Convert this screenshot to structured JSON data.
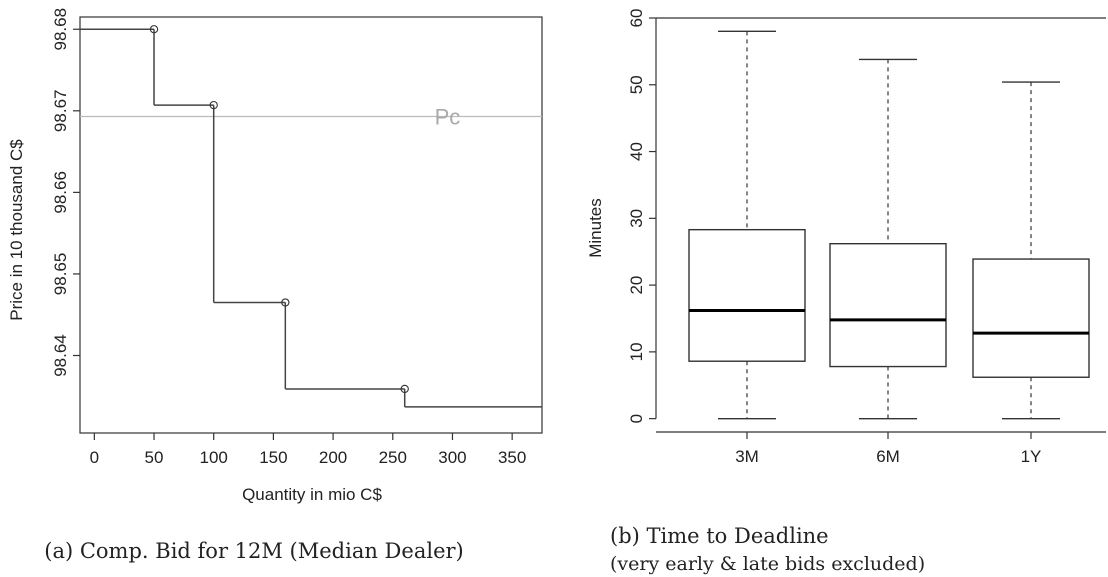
{
  "chart_data": [
    {
      "type": "line",
      "step": true,
      "caption": "(a) Comp. Bid for 12M (Median Dealer)",
      "xlabel": "Quantity in mio C$",
      "ylabel": "Price in 10 thousand C$",
      "xlim": [
        -12,
        375
      ],
      "ylim": [
        98.6305,
        98.6815
      ],
      "xticks": [
        "0",
        "50",
        "100",
        "150",
        "200",
        "250",
        "300",
        "350"
      ],
      "xtick_values": [
        0,
        50,
        100,
        150,
        200,
        250,
        300,
        350
      ],
      "yticks": [
        "98.64",
        "98.65",
        "98.66",
        "98.67",
        "98.68"
      ],
      "ytick_values": [
        98.64,
        98.65,
        98.66,
        98.67,
        98.68
      ],
      "steps": [
        {
          "x_start": -12,
          "x_end": 50,
          "y": 98.68
        },
        {
          "x_start": 50,
          "x_end": 100,
          "y": 98.6707
        },
        {
          "x_start": 100,
          "x_end": 160,
          "y": 98.6465
        },
        {
          "x_start": 160,
          "x_end": 260,
          "y": 98.6359
        },
        {
          "x_start": 260,
          "x_end": 375,
          "y": 98.6337
        }
      ],
      "points": [
        {
          "x": 50,
          "y": 98.68
        },
        {
          "x": 100,
          "y": 98.6707
        },
        {
          "x": 160,
          "y": 98.6465
        },
        {
          "x": 260,
          "y": 98.6359
        }
      ],
      "reference_line": {
        "label": "Pc",
        "y": 98.6693,
        "color": "#bbbbbb"
      }
    },
    {
      "type": "box",
      "caption_line1": "(b) Time to Deadline",
      "caption_line2": "(very early & late bids excluded)",
      "xlabel": "",
      "ylabel": "Minutes",
      "ylim": [
        -2,
        60
      ],
      "yticks": [
        "0",
        "10",
        "20",
        "30",
        "40",
        "50",
        "60"
      ],
      "ytick_values": [
        0,
        10,
        20,
        30,
        40,
        50,
        60
      ],
      "categories": [
        "3M",
        "6M",
        "1Y"
      ],
      "boxes": [
        {
          "min": 0,
          "q1": 8.6,
          "median": 16.2,
          "q3": 28.3,
          "max": 58
        },
        {
          "min": 0,
          "q1": 7.8,
          "median": 14.8,
          "q3": 26.2,
          "max": 53.8
        },
        {
          "min": 0,
          "q1": 6.2,
          "median": 12.8,
          "q3": 23.9,
          "max": 50.4
        }
      ]
    }
  ]
}
